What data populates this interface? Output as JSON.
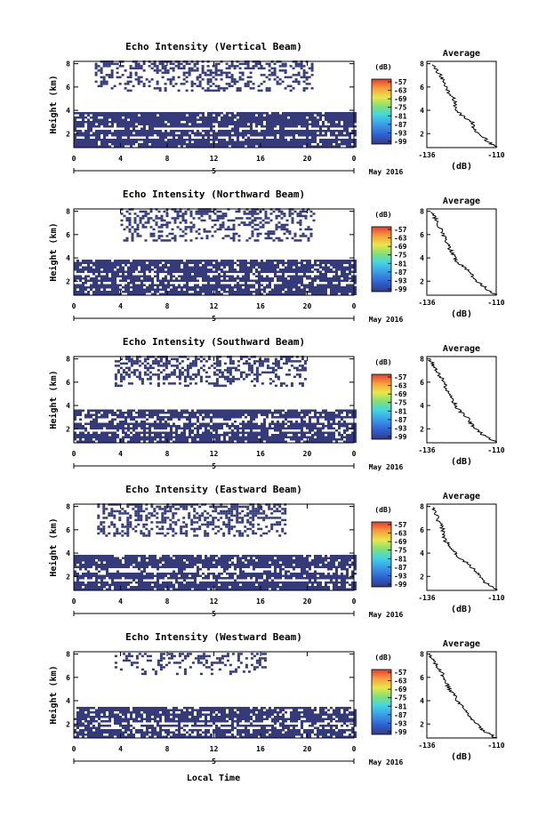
{
  "figure": {
    "xlabel": "Local Time"
  },
  "chart_data": [
    {
      "type": "heatmap",
      "title": "Echo Intensity (Vertical Beam)",
      "ylabel": "Height (km)",
      "x_ticks": [
        "0",
        "4",
        "8",
        "12",
        "16",
        "20",
        "0"
      ],
      "xlim": [
        0,
        24
      ],
      "y_ticks": [
        "2",
        "4",
        "6",
        "8"
      ],
      "ylim": [
        0.8,
        8.2
      ],
      "date_label": "5",
      "month_label": "May 2016",
      "colorbar": {
        "unit": "(dB)",
        "ticks": [
          "-57",
          "-63",
          "-69",
          "-75",
          "-81",
          "-87",
          "-93",
          "-99"
        ],
        "range": [
          -99,
          -57
        ]
      },
      "bands": [
        {
          "y_min": 0.8,
          "y_max": 3.8,
          "x_min": 0,
          "x_max": 24,
          "density": 0.9,
          "hole_rows": [
            2.3,
            1.6
          ]
        },
        {
          "y_min": 5.6,
          "y_max": 8.1,
          "x_min": 1.8,
          "x_max": 20.5,
          "density": 0.45,
          "hole_rows": []
        }
      ],
      "profile": {
        "title": "Average",
        "xlabel": "(dB)",
        "x_ticks": [
          "-136",
          "-110"
        ],
        "xlim": [
          -136,
          -110
        ],
        "y_ticks": [
          "2",
          "4",
          "6",
          "8"
        ],
        "ylim": [
          0.8,
          8.2
        ],
        "points": [
          [
            -110,
            0.8
          ],
          [
            -114,
            1.5
          ],
          [
            -118,
            2.2
          ],
          [
            -119,
            3
          ],
          [
            -123,
            3.6
          ],
          [
            -125,
            4
          ],
          [
            -126,
            5
          ],
          [
            -129,
            6
          ],
          [
            -131,
            7
          ],
          [
            -134,
            8
          ]
        ]
      }
    },
    {
      "type": "heatmap",
      "title": "Echo Intensity (Northward Beam)",
      "ylabel": "Height (km)",
      "x_ticks": [
        "0",
        "4",
        "8",
        "12",
        "16",
        "20",
        "0"
      ],
      "xlim": [
        0,
        24
      ],
      "y_ticks": [
        "2",
        "4",
        "6",
        "8"
      ],
      "ylim": [
        0.8,
        8.2
      ],
      "date_label": "5",
      "month_label": "May 2016",
      "colorbar": {
        "unit": "(dB)",
        "ticks": [
          "-57",
          "-63",
          "-69",
          "-75",
          "-81",
          "-87",
          "-93",
          "-99"
        ],
        "range": [
          -99,
          -57
        ]
      },
      "bands": [
        {
          "y_min": 0.8,
          "y_max": 3.8,
          "x_min": 0,
          "x_max": 24,
          "density": 0.85,
          "hole_rows": [
            2.5,
            1.7
          ]
        },
        {
          "y_min": 5.4,
          "y_max": 8.1,
          "x_min": 4.0,
          "x_max": 20.5,
          "density": 0.45,
          "hole_rows": []
        }
      ],
      "profile": {
        "title": "Average",
        "xlabel": "(dB)",
        "x_ticks": [
          "-136",
          "-110"
        ],
        "xlim": [
          -136,
          -110
        ],
        "y_ticks": [
          "2",
          "4",
          "6",
          "8"
        ],
        "ylim": [
          0.8,
          8.2
        ],
        "points": [
          [
            -110,
            0.8
          ],
          [
            -114,
            1.4
          ],
          [
            -118,
            2.2
          ],
          [
            -121,
            3
          ],
          [
            -124,
            3.5
          ],
          [
            -126,
            4.2
          ],
          [
            -128,
            5
          ],
          [
            -130,
            6
          ],
          [
            -132,
            7
          ],
          [
            -134,
            8
          ]
        ]
      }
    },
    {
      "type": "heatmap",
      "title": "Echo Intensity (Southward Beam)",
      "ylabel": "Height (km)",
      "x_ticks": [
        "0",
        "4",
        "8",
        "12",
        "16",
        "20",
        "0"
      ],
      "xlim": [
        0,
        24
      ],
      "y_ticks": [
        "2",
        "4",
        "6",
        "8"
      ],
      "ylim": [
        0.8,
        8.2
      ],
      "date_label": "5",
      "month_label": "May 2016",
      "colorbar": {
        "unit": "(dB)",
        "ticks": [
          "-57",
          "-63",
          "-69",
          "-75",
          "-81",
          "-87",
          "-93",
          "-99"
        ],
        "range": [
          -99,
          -57
        ]
      },
      "bands": [
        {
          "y_min": 0.8,
          "y_max": 3.6,
          "x_min": 0,
          "x_max": 24,
          "density": 0.85,
          "hole_rows": [
            2.6,
            1.8
          ]
        },
        {
          "y_min": 5.6,
          "y_max": 8.1,
          "x_min": 3.5,
          "x_max": 19.8,
          "density": 0.5,
          "hole_rows": []
        }
      ],
      "profile": {
        "title": "Average",
        "xlabel": "(dB)",
        "x_ticks": [
          "-136",
          "-110"
        ],
        "xlim": [
          -136,
          -110
        ],
        "y_ticks": [
          "2",
          "4",
          "6",
          "8"
        ],
        "ylim": [
          0.8,
          8.2
        ],
        "points": [
          [
            -110,
            0.8
          ],
          [
            -115,
            1.5
          ],
          [
            -119,
            2.3
          ],
          [
            -121,
            3
          ],
          [
            -124,
            3.6
          ],
          [
            -126,
            4.3
          ],
          [
            -128,
            5.2
          ],
          [
            -130,
            6.2
          ],
          [
            -133,
            7.2
          ],
          [
            -135,
            8
          ]
        ]
      }
    },
    {
      "type": "heatmap",
      "title": "Echo Intensity (Eastward Beam)",
      "ylabel": "Height (km)",
      "x_ticks": [
        "0",
        "4",
        "8",
        "12",
        "16",
        "20",
        "0"
      ],
      "xlim": [
        0,
        24
      ],
      "y_ticks": [
        "2",
        "4",
        "6",
        "8"
      ],
      "ylim": [
        0.8,
        8.2
      ],
      "date_label": "5",
      "month_label": "May 2016",
      "colorbar": {
        "unit": "(dB)",
        "ticks": [
          "-57",
          "-63",
          "-69",
          "-75",
          "-81",
          "-87",
          "-93",
          "-99"
        ],
        "range": [
          -99,
          -57
        ]
      },
      "bands": [
        {
          "y_min": 0.8,
          "y_max": 3.8,
          "x_min": 0,
          "x_max": 24,
          "density": 0.88,
          "hole_rows": [
            2.4,
            1.6
          ]
        },
        {
          "y_min": 5.4,
          "y_max": 8.1,
          "x_min": 2.0,
          "x_max": 18.2,
          "density": 0.5,
          "hole_rows": []
        }
      ],
      "profile": {
        "title": "Average",
        "xlabel": "(dB)",
        "x_ticks": [
          "-136",
          "-110"
        ],
        "xlim": [
          -136,
          -110
        ],
        "y_ticks": [
          "2",
          "4",
          "6",
          "8"
        ],
        "ylim": [
          0.8,
          8.2
        ],
        "points": [
          [
            -110,
            0.8
          ],
          [
            -114,
            1.5
          ],
          [
            -117,
            2.2
          ],
          [
            -120,
            3
          ],
          [
            -124,
            3.6
          ],
          [
            -126,
            4.3
          ],
          [
            -129,
            5
          ],
          [
            -130,
            6
          ],
          [
            -132,
            7
          ],
          [
            -134,
            8
          ]
        ]
      }
    },
    {
      "type": "heatmap",
      "title": "Echo Intensity (Westward Beam)",
      "ylabel": "Height (km)",
      "x_ticks": [
        "0",
        "4",
        "8",
        "12",
        "16",
        "20",
        "0"
      ],
      "xlim": [
        0,
        24
      ],
      "y_ticks": [
        "2",
        "4",
        "6",
        "8"
      ],
      "ylim": [
        0.8,
        8.2
      ],
      "date_label": "5",
      "month_label": "May 2016",
      "colorbar": {
        "unit": "(dB)",
        "ticks": [
          "-57",
          "-63",
          "-69",
          "-75",
          "-81",
          "-87",
          "-93",
          "-99"
        ],
        "range": [
          -99,
          -57
        ]
      },
      "bands": [
        {
          "y_min": 0.8,
          "y_max": 3.3,
          "x_min": 0,
          "x_max": 24,
          "density": 0.82,
          "hole_rows": [
            2.0,
            1.5
          ]
        },
        {
          "y_min": 6.2,
          "y_max": 8.1,
          "x_min": 3.5,
          "x_max": 16.5,
          "density": 0.35,
          "hole_rows": []
        }
      ],
      "profile": {
        "title": "Average",
        "xlabel": "(dB)",
        "x_ticks": [
          "-136",
          "-110"
        ],
        "xlim": [
          -136,
          -110
        ],
        "y_ticks": [
          "2",
          "4",
          "6",
          "8"
        ],
        "ylim": [
          0.8,
          8.2
        ],
        "points": [
          [
            -110,
            0.8
          ],
          [
            -115,
            1.5
          ],
          [
            -119,
            2.3
          ],
          [
            -121,
            3
          ],
          [
            -124,
            3.8
          ],
          [
            -126,
            4.5
          ],
          [
            -128,
            5.2
          ],
          [
            -130,
            6.2
          ],
          [
            -133,
            7.2
          ],
          [
            -135,
            8
          ]
        ]
      }
    }
  ]
}
